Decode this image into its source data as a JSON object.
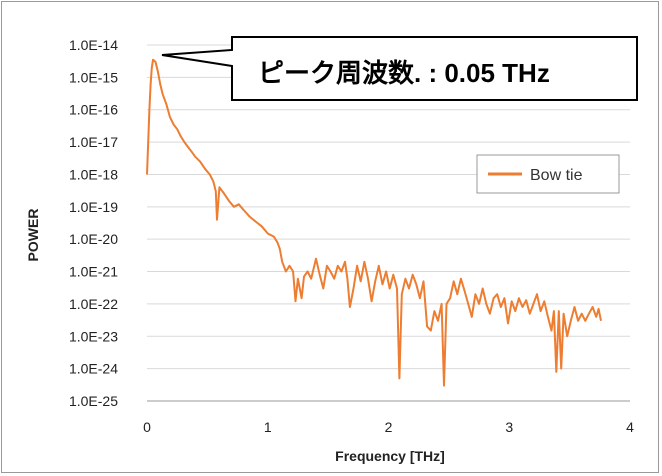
{
  "chart_data": {
    "type": "line",
    "title": "",
    "xlabel": "Frequency [THz]",
    "ylabel": "POWER",
    "xlim": [
      0,
      4
    ],
    "ylim_log10": [
      -25,
      -14
    ],
    "x_ticks": [
      "0",
      "1",
      "2",
      "3",
      "4"
    ],
    "y_ticks": [
      "1.0E-14",
      "1.0E-15",
      "1.0E-16",
      "1.0E-17",
      "1.0E-18",
      "1.0E-19",
      "1.0E-20",
      "1.0E-21",
      "1.0E-22",
      "1.0E-23",
      "1.0E-24",
      "1.0E-25"
    ],
    "y_scale": "log",
    "grid": "horizontal",
    "legend_position": "right",
    "annotation": "ピーク周波数. : 0.05 THz",
    "series": [
      {
        "name": "Bow tie",
        "color": "#ED7D31",
        "points": [
          [
            0.0,
            1e-18
          ],
          [
            0.01,
            1e-17
          ],
          [
            0.02,
            1e-16
          ],
          [
            0.03,
            6e-16
          ],
          [
            0.04,
            2e-15
          ],
          [
            0.05,
            3.5e-15
          ],
          [
            0.07,
            3e-15
          ],
          [
            0.09,
            1.5e-15
          ],
          [
            0.11,
            6e-16
          ],
          [
            0.13,
            3e-16
          ],
          [
            0.16,
            1.5e-16
          ],
          [
            0.19,
            6e-17
          ],
          [
            0.22,
            3.5e-17
          ],
          [
            0.25,
            2.5e-17
          ],
          [
            0.28,
            1.5e-17
          ],
          [
            0.31,
            1e-17
          ],
          [
            0.34,
            7e-18
          ],
          [
            0.37,
            5e-18
          ],
          [
            0.4,
            3.5e-18
          ],
          [
            0.44,
            2.5e-18
          ],
          [
            0.48,
            1.5e-18
          ],
          [
            0.52,
            1e-18
          ],
          [
            0.55,
            6e-19
          ],
          [
            0.57,
            3e-19
          ],
          [
            0.58,
            4e-20
          ],
          [
            0.6,
            4e-19
          ],
          [
            0.64,
            2.5e-19
          ],
          [
            0.68,
            1.5e-19
          ],
          [
            0.72,
            1e-19
          ],
          [
            0.76,
            1.2e-19
          ],
          [
            0.8,
            8e-20
          ],
          [
            0.85,
            5e-20
          ],
          [
            0.9,
            3.5e-20
          ],
          [
            0.95,
            2.5e-20
          ],
          [
            1.0,
            1.5e-20
          ],
          [
            1.05,
            1.2e-20
          ],
          [
            1.08,
            8e-21
          ],
          [
            1.1,
            5e-21
          ],
          [
            1.12,
            2e-21
          ],
          [
            1.15,
            1e-21
          ],
          [
            1.18,
            1.5e-21
          ],
          [
            1.21,
            1e-21
          ],
          [
            1.23,
            1.2e-22
          ],
          [
            1.25,
            6e-22
          ],
          [
            1.28,
            1.5e-22
          ],
          [
            1.3,
            7e-22
          ],
          [
            1.33,
            1e-21
          ],
          [
            1.36,
            6e-22
          ],
          [
            1.4,
            2.5e-21
          ],
          [
            1.43,
            8e-22
          ],
          [
            1.46,
            3e-22
          ],
          [
            1.49,
            1.5e-21
          ],
          [
            1.52,
            1e-21
          ],
          [
            1.55,
            6e-22
          ],
          [
            1.58,
            1.5e-21
          ],
          [
            1.61,
            1e-21
          ],
          [
            1.64,
            2e-21
          ],
          [
            1.66,
            6e-22
          ],
          [
            1.68,
            8e-23
          ],
          [
            1.71,
            3e-22
          ],
          [
            1.74,
            1.5e-21
          ],
          [
            1.77,
            5e-22
          ],
          [
            1.8,
            2e-21
          ],
          [
            1.83,
            6e-22
          ],
          [
            1.86,
            1.2e-22
          ],
          [
            1.89,
            5e-22
          ],
          [
            1.92,
            1.5e-21
          ],
          [
            1.95,
            4e-22
          ],
          [
            1.98,
            1e-21
          ],
          [
            2.01,
            3e-22
          ],
          [
            2.04,
            8e-22
          ],
          [
            2.07,
            3e-22
          ],
          [
            2.09,
            5e-25
          ],
          [
            2.11,
            2e-22
          ],
          [
            2.14,
            6e-22
          ],
          [
            2.17,
            3e-22
          ],
          [
            2.2,
            8e-22
          ],
          [
            2.23,
            4e-22
          ],
          [
            2.26,
            1.5e-22
          ],
          [
            2.29,
            5e-22
          ],
          [
            2.32,
            2e-23
          ],
          [
            2.35,
            1.5e-23
          ],
          [
            2.38,
            6e-23
          ],
          [
            2.41,
            3e-23
          ],
          [
            2.44,
            1e-22
          ],
          [
            2.46,
            3e-25
          ],
          [
            2.48,
            1e-22
          ],
          [
            2.51,
            1.5e-22
          ],
          [
            2.54,
            5e-22
          ],
          [
            2.57,
            2e-22
          ],
          [
            2.6,
            6e-22
          ],
          [
            2.63,
            2.5e-22
          ],
          [
            2.66,
            1e-22
          ],
          [
            2.69,
            4e-23
          ],
          [
            2.72,
            2e-22
          ],
          [
            2.75,
            1e-22
          ],
          [
            2.78,
            3e-22
          ],
          [
            2.81,
            1e-22
          ],
          [
            2.84,
            5e-23
          ],
          [
            2.87,
            1.5e-22
          ],
          [
            2.9,
            2e-22
          ],
          [
            2.93,
            8e-23
          ],
          [
            2.96,
            1.5e-22
          ],
          [
            2.99,
            2.5e-23
          ],
          [
            3.02,
            1.2e-22
          ],
          [
            3.05,
            6e-23
          ],
          [
            3.08,
            1.5e-22
          ],
          [
            3.11,
            8e-23
          ],
          [
            3.14,
            1.3e-22
          ],
          [
            3.17,
            5e-23
          ],
          [
            3.2,
            1e-22
          ],
          [
            3.23,
            2e-22
          ],
          [
            3.26,
            6e-23
          ],
          [
            3.29,
            1.2e-22
          ],
          [
            3.32,
            4e-23
          ],
          [
            3.35,
            1.5e-23
          ],
          [
            3.37,
            6e-23
          ],
          [
            3.39,
            8e-25
          ],
          [
            3.41,
            6e-23
          ],
          [
            3.43,
            1e-24
          ],
          [
            3.45,
            5e-23
          ],
          [
            3.48,
            1e-23
          ],
          [
            3.51,
            3e-23
          ],
          [
            3.54,
            8e-23
          ],
          [
            3.57,
            3e-23
          ],
          [
            3.6,
            5e-23
          ],
          [
            3.63,
            3e-23
          ],
          [
            3.66,
            5e-23
          ],
          [
            3.69,
            8e-23
          ],
          [
            3.72,
            4e-23
          ],
          [
            3.74,
            7e-23
          ],
          [
            3.76,
            3e-23
          ]
        ]
      }
    ]
  }
}
